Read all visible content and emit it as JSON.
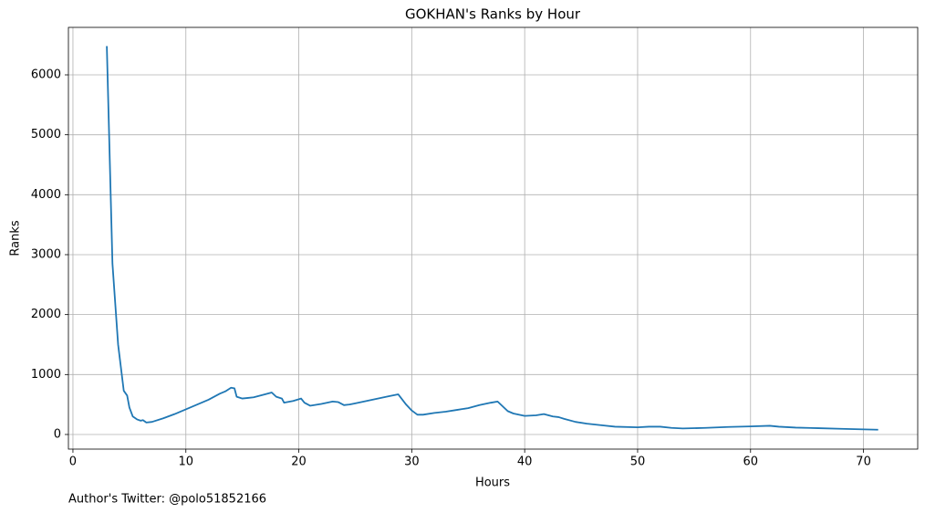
{
  "chart_data": {
    "type": "line",
    "title": "GOKHAN's Ranks by Hour",
    "x_label": "Hours",
    "y_label": "Ranks",
    "annotation": "Author's Twitter: @polo51852166",
    "x": [
      3.0,
      3.5,
      4.0,
      4.5,
      4.8,
      5.0,
      5.3,
      5.7,
      6.0,
      6.2,
      6.5,
      7,
      8,
      9,
      10,
      11,
      12,
      13,
      13.5,
      14,
      14.3,
      14.5,
      15,
      15.5,
      16,
      17,
      17.6,
      18,
      18.5,
      18.7,
      19.5,
      20.2,
      20.5,
      21,
      22,
      23,
      23.5,
      24,
      24.5,
      25,
      26,
      27,
      28,
      28.8,
      29.5,
      30,
      30.5,
      31,
      32,
      33,
      34,
      35,
      36,
      37,
      37.6,
      38.5,
      39,
      40,
      41,
      41.7,
      42.5,
      43,
      43.5,
      44.5,
      45.5,
      47,
      48,
      50,
      51,
      52,
      53,
      54,
      56,
      58,
      60,
      61.7,
      62.5,
      64,
      66,
      68,
      70,
      71.3
    ],
    "series": [
      {
        "name": "Ranks",
        "color": "#1f77b4",
        "values": [
          6480,
          2850,
          1500,
          730,
          650,
          450,
          300,
          250,
          230,
          240,
          200,
          210,
          270,
          340,
          420,
          500,
          580,
          680,
          720,
          780,
          770,
          630,
          600,
          610,
          620,
          670,
          700,
          630,
          600,
          530,
          560,
          600,
          530,
          480,
          510,
          550,
          540,
          490,
          500,
          520,
          560,
          600,
          640,
          670,
          500,
          400,
          330,
          330,
          360,
          380,
          410,
          440,
          490,
          530,
          550,
          390,
          350,
          310,
          320,
          340,
          300,
          290,
          260,
          210,
          180,
          150,
          130,
          120,
          130,
          130,
          110,
          100,
          110,
          125,
          135,
          145,
          130,
          115,
          105,
          95,
          85,
          80
        ]
      }
    ],
    "xlim": [
      -0.4,
      74.8
    ],
    "xticks": [
      0,
      10,
      20,
      30,
      40,
      50,
      60,
      70
    ],
    "ylim": [
      -244,
      6792
    ],
    "yticks": [
      0,
      1000,
      2000,
      3000,
      4000,
      5000,
      6000
    ],
    "grid": true
  }
}
